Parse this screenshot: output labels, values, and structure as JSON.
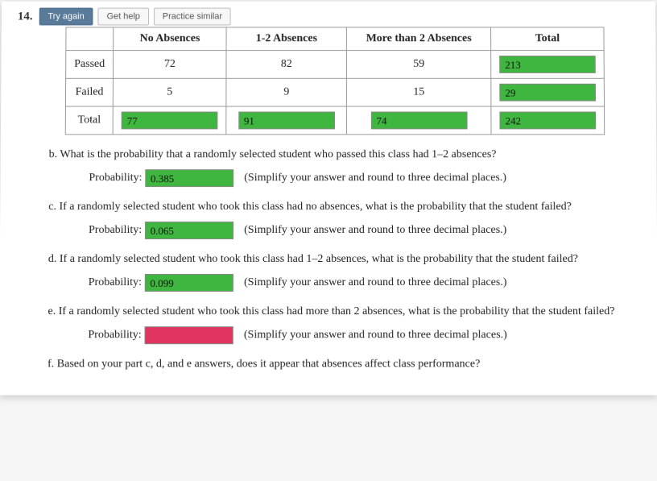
{
  "question_number": "14.",
  "buttons": {
    "try_again": "Try again",
    "get_help": "Get help",
    "practice_similar": "Practice similar"
  },
  "table": {
    "headers": {
      "col1": "No Absences",
      "col2": "1-2 Absences",
      "col3": "More than 2 Absences",
      "col4": "Total"
    },
    "rows": {
      "passed": {
        "label": "Passed",
        "c1": "72",
        "c2": "82",
        "c3": "59",
        "c4": "213"
      },
      "failed": {
        "label": "Failed",
        "c1": "5",
        "c2": "9",
        "c3": "15",
        "c4": "29"
      },
      "total": {
        "label": "Total",
        "c1": "77",
        "c2": "91",
        "c3": "74",
        "c4": "242"
      }
    }
  },
  "parts": {
    "b": {
      "text": "b. What is the probability that a randomly selected student who passed this class had 1–2 absences?",
      "label": "Probability:",
      "value": "0.385",
      "hint": "(Simplify your answer and round to three decimal places.)"
    },
    "c": {
      "text": "c. If a randomly selected student who took this class had no absences, what is the probability that the student failed?",
      "label": "Probability:",
      "value": "0.065",
      "hint": "(Simplify your answer and round to three decimal places.)"
    },
    "d": {
      "text": "d. If a randomly selected student who took this class had 1–2 absences, what is the probability that the student failed?",
      "label": "Probability:",
      "value": "0.099",
      "hint": "(Simplify your answer and round to three decimal places.)"
    },
    "e": {
      "text": "e. If a randomly selected student who took this class had more than 2 absences, what is the probability that the student failed?",
      "label": "Probability:",
      "value": "",
      "hint": "(Simplify your answer and round to three decimal places.)"
    },
    "f": {
      "text": "f. Based on your part c, d, and e answers, does it appear that absences affect class performance?"
    }
  },
  "colors": {
    "correct": "#3fb63f",
    "wrong": "#e0355f",
    "primary_btn": "#5a7a9a"
  }
}
